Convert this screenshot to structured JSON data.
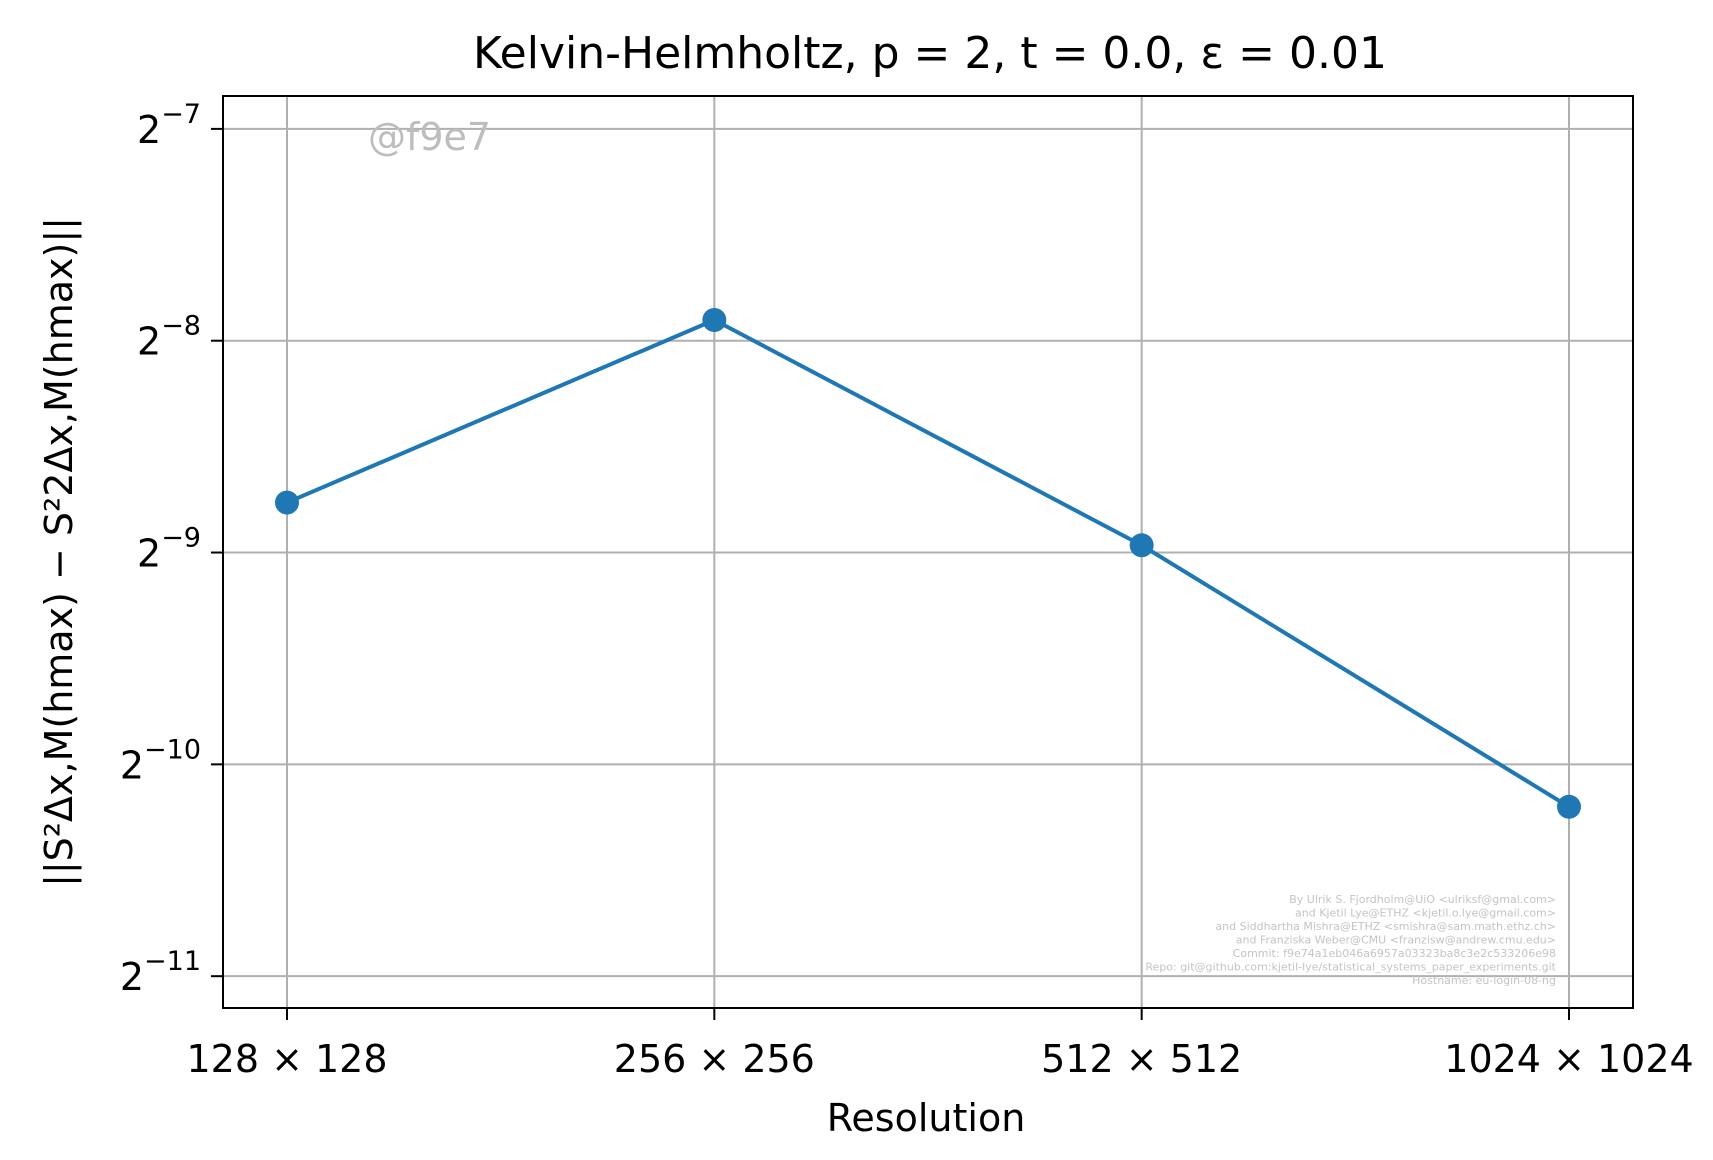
{
  "watermark": "@f9e7",
  "credits": [
    "By Ulrik S. Fjordholm@UiO <ulriksf@gmal.com>",
    "and Kjetil Lye@ETHZ <kjetil.o.lye@gmail.com>",
    "and Siddhartha Mishra@ETHZ <smishra@sam.math.ethz.ch>",
    "and Franziska Weber@CMU <franzisw@andrew.cmu.edu>",
    "Commit: f9e74a1eb046a6957a03323ba8c3e2c533206e98",
    "Repo: git@github.com:kjetil-lye/statistical_systems_paper_experiments.git",
    "Hostname: eu-login-08-ng"
  ],
  "chart_data": {
    "type": "line",
    "title": "Kelvin-Helmholtz, p = 2, t = 0.0, ε = 0.01",
    "xlabel": "Resolution",
    "ylabel": "||S²Δx,M(hmax) − S²2Δx,M(hmax)||",
    "yscale": "log2",
    "categories": [
      "128 × 128",
      "256 × 256",
      "512 × 512",
      "1024 × 1024"
    ],
    "y_ticks": [
      {
        "base": "2",
        "exp": "−7",
        "value": 0.0078125
      },
      {
        "base": "2",
        "exp": "−8",
        "value": 0.00390625
      },
      {
        "base": "2",
        "exp": "−9",
        "value": 0.001953125
      },
      {
        "base": "2",
        "exp": "−10",
        "value": 0.0009765625
      },
      {
        "base": "2",
        "exp": "−11",
        "value": 0.00048828125
      }
    ],
    "ylim": [
      0.00044,
      0.0087
    ],
    "grid": true,
    "series": [
      {
        "values": [
          0.0023,
          0.00418,
          0.002,
          0.00085
        ],
        "color": "#1f77b4"
      }
    ]
  }
}
